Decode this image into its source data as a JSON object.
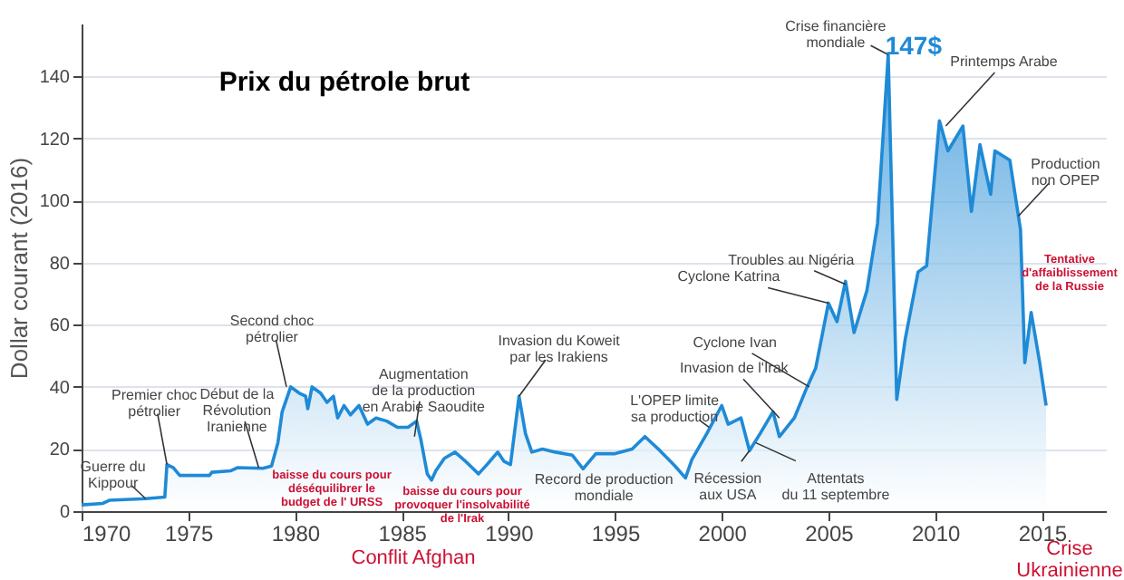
{
  "chart_data": {
    "type": "area",
    "title": "Prix du pétrole brut",
    "ylabel": "Dollar courant (2016)",
    "x": [
      1970,
      1971,
      1971.3,
      1973,
      1973.9,
      1974.0,
      1974.3,
      1974.6,
      1976,
      1976.1,
      1977,
      1977.3,
      1978.5,
      1978.9,
      1979.2,
      1979.4,
      1979.8,
      1980.2,
      1980.5,
      1980.6,
      1980.8,
      1981.2,
      1981.5,
      1981.8,
      1982.0,
      1982.3,
      1982.6,
      1983.0,
      1983.4,
      1983.8,
      1984.3,
      1984.8,
      1985.3,
      1985.7,
      1985.9,
      1986.2,
      1986.4,
      1986.6,
      1987.0,
      1987.5,
      1988.0,
      1988.3,
      1988.6,
      1989.0,
      1989.5,
      1989.8,
      1990.1,
      1990.5,
      1990.8,
      1991.1,
      1991.6,
      1992.2,
      1993.0,
      1993.5,
      1994.1,
      1995,
      1995.8,
      1996.4,
      1997.1,
      1997.8,
      1998.3,
      1998.6,
      1999.3,
      2000,
      2000.3,
      2000.9,
      2001.3,
      2001.8,
      2002.4,
      2002.7,
      2003.4,
      2004,
      2004.4,
      2005,
      2005.4,
      2005.8,
      2006.2,
      2006.8,
      2007.3,
      2007.8,
      2008.2,
      2008.6,
      2009.2,
      2009.6,
      2010.2,
      2010.6,
      2011.3,
      2011.7,
      2012.1,
      2012.6,
      2012.8,
      2013.5,
      2014,
      2014.2,
      2014.5,
      2014.9,
      2015.2
    ],
    "series": [
      {
        "color": "#1f8ad6",
        "values": [
          2,
          2.5,
          3.5,
          4,
          4.5,
          15,
          14,
          11.5,
          11.5,
          12.5,
          13,
          14,
          13.8,
          14.5,
          22,
          32,
          40,
          38,
          37,
          33,
          40,
          38,
          35,
          37,
          30,
          34,
          31,
          34,
          28,
          30,
          29,
          27,
          27,
          29,
          23,
          12,
          10,
          13,
          17,
          19,
          16,
          14,
          12,
          15,
          19,
          16,
          15,
          37,
          25,
          19,
          20,
          19,
          18,
          13.6,
          18.5,
          18.5,
          20,
          24,
          19.5,
          14.6,
          10.7,
          16.6,
          25,
          34,
          28,
          30,
          19.5,
          25,
          32,
          24,
          30,
          40,
          46,
          67,
          61,
          74,
          57.5,
          71,
          92.6,
          147,
          36,
          55.5,
          77,
          79,
          125.7,
          116,
          124,
          96.5,
          118,
          102,
          116,
          113,
          90.6,
          47.8,
          64,
          47.8,
          34
        ]
      }
    ],
    "xlim": [
      1970,
      2018
    ],
    "ylim": [
      0,
      157
    ],
    "xticks": [
      1970,
      1975,
      1980,
      1985,
      1990,
      1995,
      2000,
      2005,
      2010,
      2015
    ],
    "yticks": [
      0,
      20,
      40,
      60,
      80,
      100,
      120,
      140
    ],
    "grid": "y",
    "annotations": [
      {
        "text": "Guerre du\nKippour",
        "x": 1973,
        "y": 4
      },
      {
        "text": "Premier choc\npétrolier",
        "x": 1974,
        "y": 15
      },
      {
        "text": "Début de la\nRévolution\nIranienne",
        "x": 1978.3,
        "y": 14
      },
      {
        "text": "Second choc\npétrolier",
        "x": 1979.6,
        "y": 40
      },
      {
        "text": "Augmentation\nde la production\nen Arabie Saoudite",
        "x": 1985.6,
        "y": 24
      },
      {
        "text": "Invasion du Koweit\npar les Irakiens",
        "x": 1990.5,
        "y": 37
      },
      {
        "text": "Record de production\nmondiale",
        "x": 1998.3,
        "y": 11
      },
      {
        "text": "L'OPEP limite\nsa production",
        "x": 1999.4,
        "y": 27
      },
      {
        "text": "Récession\naux USA",
        "x": 2001.3,
        "y": 19.5
      },
      {
        "text": "Attentats\ndu 11 septembre",
        "x": 2001.6,
        "y": 22
      },
      {
        "text": "Invasion de l'Irak",
        "x": 2002.7,
        "y": 30
      },
      {
        "text": "Cyclone Ivan",
        "x": 2004.1,
        "y": 40
      },
      {
        "text": "Cyclone Katrina",
        "x": 2005.0,
        "y": 67
      },
      {
        "text": "Troubles au Nigéria",
        "x": 2005.8,
        "y": 73
      },
      {
        "text": "Crise financière\nmondiale",
        "x": 2007.8,
        "y": 147
      },
      {
        "text": "147$",
        "x": 2007.8,
        "y": 147
      },
      {
        "text": "Printemps Arabe",
        "x": 2010.5,
        "y": 124
      },
      {
        "text": "Production\nnon OPEP",
        "x": 2013.9,
        "y": 95
      },
      "Tentative\nd'affaiblissement\nde la Russie",
      "baisse du cours pour\ndéséquilibrer le\nbudget de l' URSS",
      "baisse du cours pour\nprovoquer l'insolvabilité\nde l'Irak",
      "Conflit Afghan",
      "Crise\nUkrainienne"
    ]
  }
}
